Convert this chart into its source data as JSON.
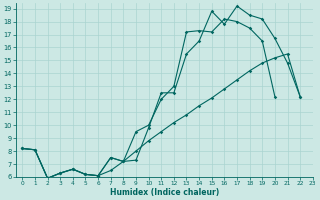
{
  "bg_color": "#cce8e4",
  "grid_color": "#aad4d0",
  "line_color": "#006660",
  "xlabel": "Humidex (Indice chaleur)",
  "xlim": [
    -0.5,
    23
  ],
  "ylim": [
    6,
    19.4
  ],
  "xticks": [
    0,
    1,
    2,
    3,
    4,
    5,
    6,
    7,
    8,
    9,
    10,
    11,
    12,
    13,
    14,
    15,
    16,
    17,
    18,
    19,
    20,
    21,
    22,
    23
  ],
  "yticks": [
    6,
    7,
    8,
    9,
    10,
    11,
    12,
    13,
    14,
    15,
    16,
    17,
    18,
    19
  ],
  "line1": {
    "x": [
      0,
      1,
      2,
      3,
      4,
      5,
      6,
      7,
      8,
      9,
      10,
      11,
      12,
      13,
      14,
      15,
      16,
      17,
      18,
      19,
      20,
      21,
      22
    ],
    "y": [
      8.2,
      8.1,
      5.9,
      6.3,
      6.6,
      6.2,
      6.1,
      7.5,
      7.2,
      7.3,
      9.8,
      12.5,
      12.5,
      15.5,
      16.5,
      18.8,
      17.8,
      19.2,
      18.5,
      18.2,
      16.7,
      14.8,
      12.2
    ]
  },
  "line2": {
    "x": [
      0,
      1,
      2,
      3,
      4,
      5,
      6,
      7,
      8,
      9,
      10,
      11,
      12,
      13,
      14,
      15,
      16,
      17,
      18,
      19,
      20
    ],
    "y": [
      8.2,
      8.1,
      5.9,
      6.3,
      6.6,
      6.2,
      6.1,
      7.5,
      7.2,
      9.5,
      10.0,
      12.0,
      13.0,
      17.2,
      17.3,
      17.2,
      18.2,
      18.0,
      17.5,
      16.5,
      12.2
    ]
  },
  "line3": {
    "x": [
      0,
      1,
      2,
      3,
      4,
      5,
      6,
      7,
      8,
      9,
      10,
      11,
      12,
      13,
      14,
      15,
      16,
      17,
      18,
      19,
      20,
      21,
      22
    ],
    "y": [
      8.2,
      8.1,
      5.9,
      6.3,
      6.6,
      6.2,
      6.1,
      6.5,
      7.2,
      8.0,
      8.8,
      9.5,
      10.2,
      10.8,
      11.5,
      12.1,
      12.8,
      13.5,
      14.2,
      14.8,
      15.2,
      15.5,
      12.2
    ]
  }
}
